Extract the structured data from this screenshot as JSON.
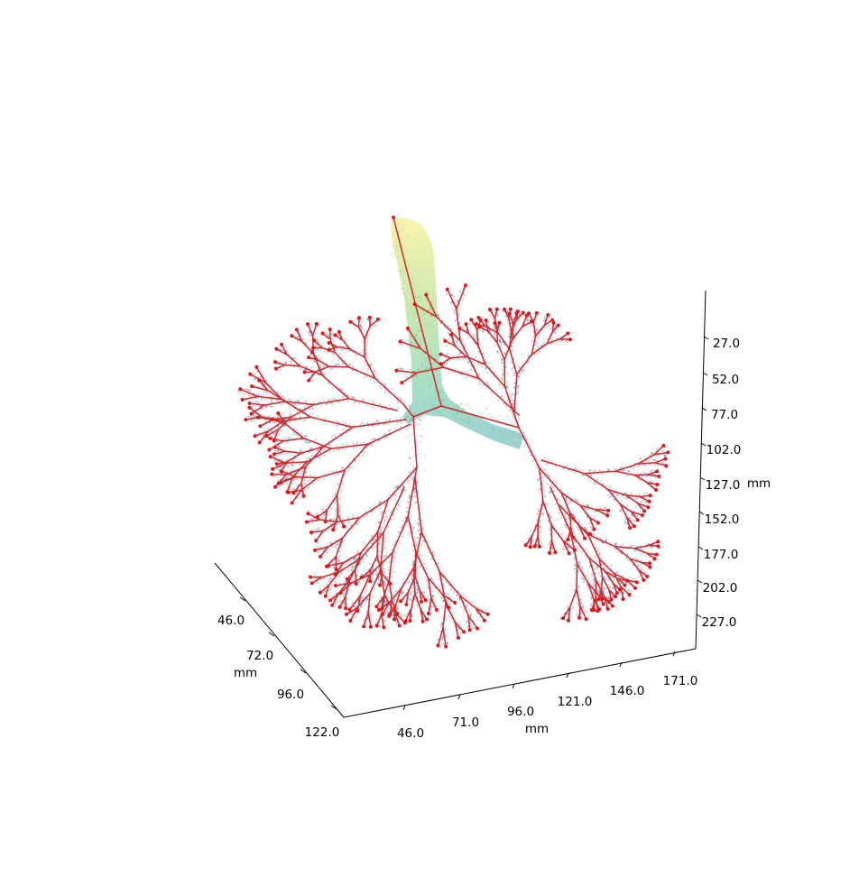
{
  "chart_data": {
    "type": "scatter",
    "title": "",
    "projection": "3d",
    "grid": false,
    "axes": {
      "x": {
        "label": "mm",
        "ticks": [
          "46.0",
          "72.0",
          "96.0",
          "122.0"
        ]
      },
      "y": {
        "label": "mm",
        "ticks": [
          "46.0",
          "71.0",
          "96.0",
          "121.0",
          "146.0",
          "171.0"
        ]
      },
      "z": {
        "label": "mm",
        "ticks": [
          "27.0",
          "52.0",
          "77.0",
          "102.0",
          "127.0",
          "152.0",
          "177.0",
          "202.0",
          "227.0"
        ],
        "inverted": true
      }
    },
    "series": [
      {
        "kind": "point-cloud",
        "colormap": "viridis"
      },
      {
        "kind": "skeleton-graph",
        "color": "#d62728"
      }
    ],
    "colors": {
      "skeleton": "#d62728",
      "node": "#e0161b",
      "viridis_low": "#440154",
      "viridis_mid": "#21918c",
      "viridis_high": "#fde725"
    }
  }
}
